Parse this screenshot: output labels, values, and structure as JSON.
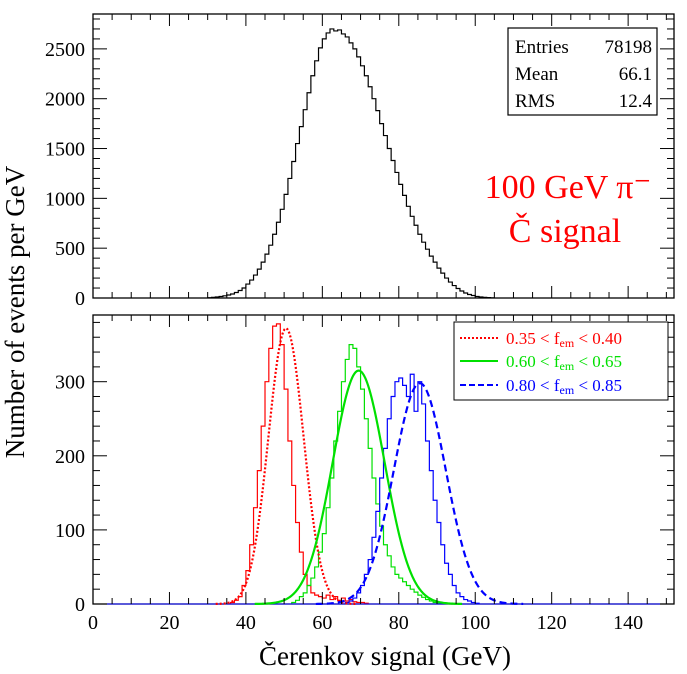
{
  "figure": {
    "ylabel": "Number of events per GeV",
    "xlabel": "Čerenkov signal (GeV)"
  },
  "chart_data": [
    {
      "type": "histogram",
      "panel": "top",
      "xlim": [
        0,
        152
      ],
      "ylim": [
        0,
        2850
      ],
      "xticks": [
        0,
        20,
        40,
        60,
        80,
        100,
        120,
        140
      ],
      "yticks": [
        0,
        500,
        1000,
        1500,
        2000,
        2500
      ],
      "ytick_labels": [
        "0",
        "500",
        "1000",
        "1500",
        "2000",
        "2500"
      ],
      "annotation": {
        "line1": "100 GeV π⁻",
        "line2": "Č signal",
        "color": "#ff0000"
      },
      "stats": {
        "entries_label": "Entries",
        "entries_value": "78198",
        "mean_label": "Mean",
        "mean_value": "66.1",
        "rms_label": "RMS",
        "rms_value": "12.4"
      },
      "series": [
        {
          "color": "#000000",
          "bin_width": 1,
          "x_start": 30,
          "values": [
            3,
            6,
            10,
            15,
            22,
            30,
            40,
            55,
            75,
            100,
            140,
            180,
            230,
            290,
            360,
            440,
            530,
            640,
            760,
            890,
            1040,
            1200,
            1370,
            1550,
            1720,
            1890,
            2060,
            2230,
            2380,
            2510,
            2600,
            2660,
            2700,
            2680,
            2690,
            2650,
            2620,
            2560,
            2500,
            2420,
            2330,
            2230,
            2120,
            2000,
            1880,
            1750,
            1630,
            1500,
            1380,
            1260,
            1140,
            1030,
            920,
            820,
            730,
            640,
            560,
            490,
            420,
            360,
            300,
            250,
            200,
            160,
            125,
            95,
            70,
            50,
            35,
            25,
            15,
            10,
            6,
            4,
            2
          ]
        }
      ]
    },
    {
      "type": "histogram",
      "panel": "bottom",
      "xlim": [
        0,
        152
      ],
      "ylim": [
        0,
        390
      ],
      "xticks": [
        0,
        20,
        40,
        60,
        80,
        100,
        120,
        140
      ],
      "xtick_labels": [
        "0",
        "20",
        "40",
        "60",
        "80",
        "100",
        "120",
        "140"
      ],
      "yticks": [
        0,
        100,
        200,
        300
      ],
      "ytick_labels": [
        "0",
        "100",
        "200",
        "300"
      ],
      "legend_position": "top-right",
      "series": [
        {
          "name": "0.35 < f_em < 0.40",
          "legend_text": {
            "lo": "0.35",
            "hi": "0.40",
            "var": "f",
            "sub": "em"
          },
          "color": "#ff0000",
          "fit_style": "dotted",
          "fit": {
            "amplitude": 372,
            "mean": 50.5,
            "sigma": 4.6
          },
          "bin_width": 1,
          "x_start": 36,
          "values": [
            2,
            5,
            10,
            25,
            45,
            80,
            130,
            180,
            240,
            300,
            345,
            375,
            378,
            350,
            290,
            220,
            160,
            110,
            70,
            40,
            25,
            15,
            12,
            10,
            8,
            12,
            6,
            10,
            5,
            8,
            4,
            6,
            3,
            2,
            2,
            1
          ]
        },
        {
          "name": "0.60 < f_em < 0.65",
          "legend_text": {
            "lo": "0.60",
            "hi": "0.65",
            "var": "f",
            "sub": "em"
          },
          "color": "#00e000",
          "fit_style": "solid",
          "fit": {
            "amplitude": 315,
            "mean": 69.5,
            "sigma": 6.8
          },
          "bin_width": 1,
          "x_start": 52,
          "values": [
            2,
            5,
            10,
            15,
            25,
            35,
            50,
            70,
            95,
            130,
            170,
            220,
            260,
            300,
            330,
            350,
            345,
            320,
            290,
            250,
            210,
            170,
            135,
            105,
            80,
            65,
            50,
            40,
            35,
            30,
            25,
            20,
            16,
            12,
            9,
            6,
            4,
            2,
            1
          ]
        },
        {
          "name": "0.80 < f_em < 0.85",
          "legend_text": {
            "lo": "0.80",
            "hi": "0.85",
            "var": "f",
            "sub": "em"
          },
          "color": "#0000ff",
          "fit_style": "dashed",
          "fit": {
            "amplitude": 298,
            "mean": 85.5,
            "sigma": 6.8
          },
          "bin_width": 1,
          "x_start": 66,
          "values": [
            2,
            4,
            8,
            15,
            25,
            40,
            60,
            90,
            125,
            170,
            210,
            250,
            280,
            300,
            305,
            295,
            280,
            310,
            260,
            300,
            270,
            220,
            180,
            140,
            110,
            80,
            55,
            40,
            25,
            15,
            10,
            6,
            4,
            2,
            1
          ]
        }
      ]
    }
  ]
}
